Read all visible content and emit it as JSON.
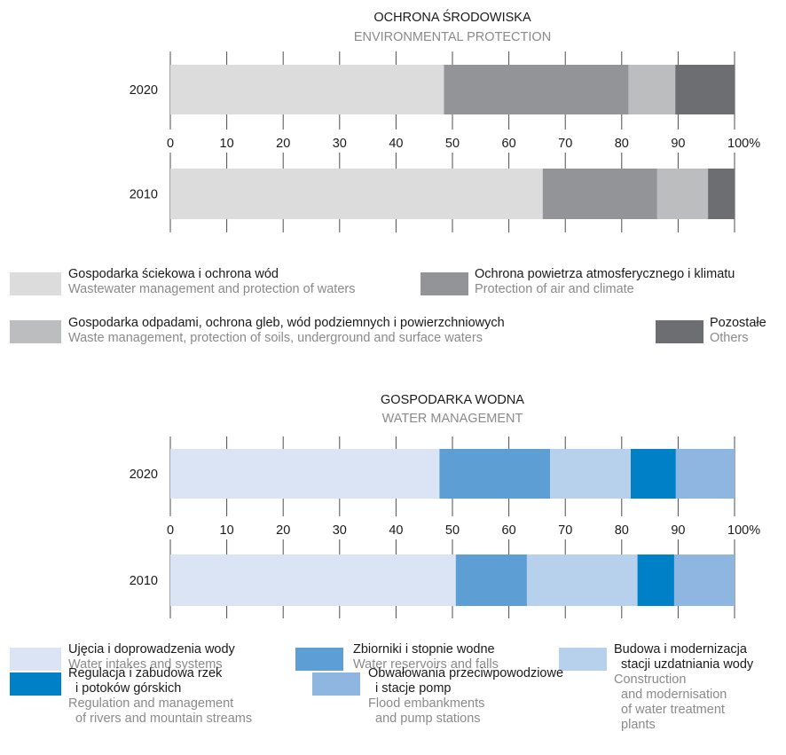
{
  "chart_data": [
    {
      "type": "bar",
      "stacked": true,
      "orientation": "horizontal",
      "title": "OCHRONA ŚRODOWISKA",
      "subtitle": "ENVIRONMENTAL PROTECTION",
      "categories": [
        "2020",
        "2010"
      ],
      "xlim": [
        0,
        100
      ],
      "ticks": [
        "0",
        "10",
        "20",
        "30",
        "40",
        "50",
        "60",
        "70",
        "80",
        "90",
        "100%"
      ],
      "series": [
        {
          "pl": "Gospodarka ściekowa i ochrona wód",
          "en": "Wastewater management and protection of waters",
          "color": "#dcdcdd",
          "values": [
            48.5,
            66
          ]
        },
        {
          "pl": "Ochrona powietrza atmosferycznego i klimatu",
          "en": "Protection of air and climate",
          "color": "#939497",
          "values": [
            32.7,
            20.3
          ]
        },
        {
          "pl": "Gospodarka odpadami, ochrona gleb, wód podziemnych i powierzchniowych",
          "en": "Waste management, protection of soils, underground and surface waters",
          "color": "#bcbdbf",
          "values": [
            8.3,
            9
          ]
        },
        {
          "pl": "Pozostałe",
          "en": "Others",
          "color": "#6d6e71",
          "values": [
            10.5,
            4.7
          ]
        }
      ]
    },
    {
      "type": "bar",
      "stacked": true,
      "orientation": "horizontal",
      "title": "GOSPODARKA WODNA",
      "subtitle": "WATER MANAGEMENT",
      "categories": [
        "2020",
        "2010"
      ],
      "xlim": [
        0,
        100
      ],
      "ticks": [
        "0",
        "10",
        "20",
        "30",
        "40",
        "50",
        "60",
        "70",
        "80",
        "90",
        "100%"
      ],
      "series": [
        {
          "pl": "Ujęcia i doprowadzenia wody",
          "en": "Water intakes and systems",
          "color": "#dae4f4",
          "values": [
            47.7,
            50.6
          ]
        },
        {
          "pl": "Zbiorniki i stopnie wodne",
          "en": "Water reservoirs and falls",
          "color": "#5d9fd5",
          "values": [
            19.6,
            12.6
          ]
        },
        {
          "pl": "Budowa i modernizacja\n  stacji uzdatniania wody",
          "en": "Construction\n  and modernisation\n  of water treatment\n  plants",
          "color": "#b7d0ec",
          "values": [
            14.3,
            19.6
          ]
        },
        {
          "pl": "Regulacja i zabudowa rzek\n  i potoków górskich",
          "en": "Regulation and management\n  of rivers and mountain streams",
          "color": "#0080c6",
          "values": [
            8,
            6.5
          ]
        },
        {
          "pl": "Obwałowania przeciwpowodziowe\n  i stacje pomp",
          "en": "Flood embankments\n  and pump stations",
          "color": "#8fb6e1",
          "values": [
            10.4,
            10.7
          ]
        }
      ]
    }
  ]
}
